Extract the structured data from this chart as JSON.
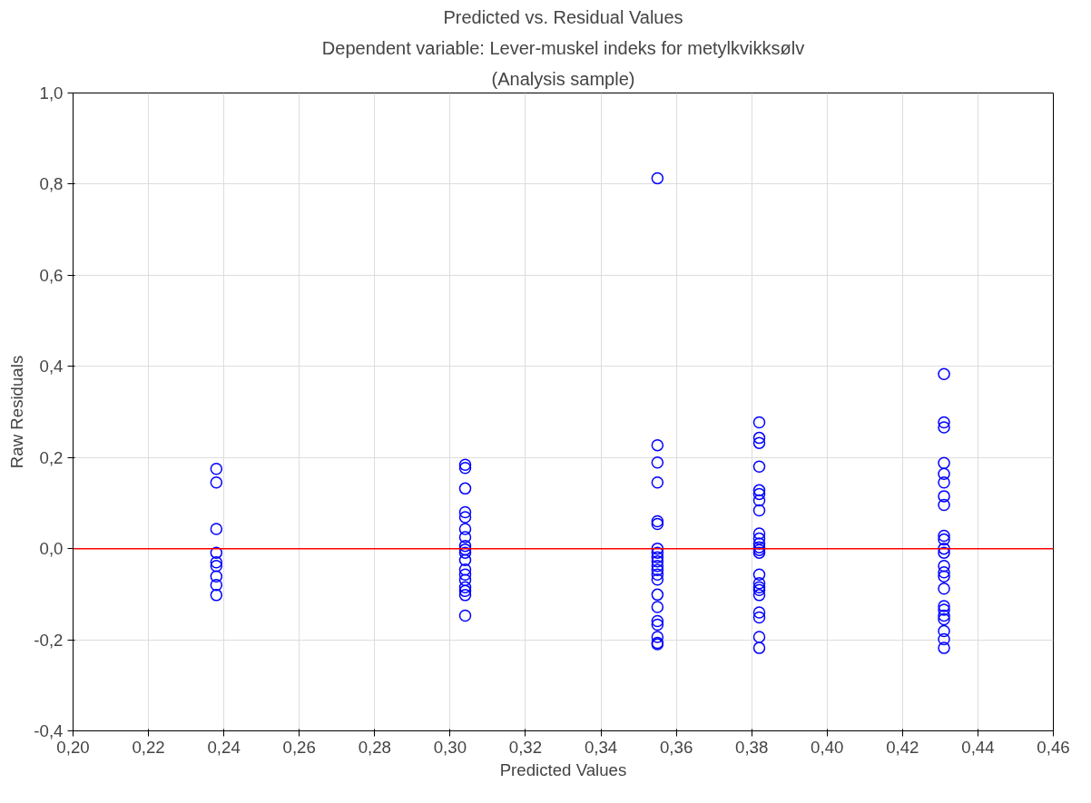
{
  "chart_data": {
    "type": "scatter",
    "title": "Predicted vs. Residual Values",
    "subtitle": "Dependent variable: Lever-muskel indeks for metylkvikksølv",
    "annotations": [
      "(Analysis sample)"
    ],
    "xlabel": "Predicted Values",
    "ylabel": "Raw Residuals",
    "series": [
      {
        "color": "#0000ff",
        "x": [
          0.238,
          0.238,
          0.238,
          0.238,
          0.238,
          0.238,
          0.238,
          0.238,
          0.238,
          0.304,
          0.304,
          0.304,
          0.304,
          0.304,
          0.304,
          0.304,
          0.304,
          0.304,
          0.304,
          0.304,
          0.304,
          0.304,
          0.304,
          0.304,
          0.304,
          0.304,
          0.304,
          0.355,
          0.355,
          0.355,
          0.355,
          0.355,
          0.355,
          0.355,
          0.355,
          0.355,
          0.355,
          0.355,
          0.355,
          0.355,
          0.355,
          0.355,
          0.355,
          0.355,
          0.355,
          0.355,
          0.355,
          0.355,
          0.382,
          0.382,
          0.382,
          0.382,
          0.382,
          0.382,
          0.382,
          0.382,
          0.382,
          0.382,
          0.382,
          0.382,
          0.382,
          0.382,
          0.382,
          0.382,
          0.382,
          0.382,
          0.382,
          0.382,
          0.382,
          0.382,
          0.382,
          0.431,
          0.431,
          0.431,
          0.431,
          0.431,
          0.431,
          0.431,
          0.431,
          0.431,
          0.431,
          0.431,
          0.431,
          0.431,
          0.431,
          0.431,
          0.431,
          0.431,
          0.431,
          0.431,
          0.431,
          0.431,
          0.431,
          0.431
        ],
        "values": [
          0.175,
          0.145,
          0.043,
          -0.009,
          -0.03,
          -0.038,
          -0.061,
          -0.08,
          -0.102,
          0.184,
          0.177,
          0.132,
          0.08,
          0.069,
          0.043,
          0.025,
          0.006,
          -0.002,
          -0.009,
          -0.025,
          -0.046,
          -0.057,
          -0.069,
          -0.085,
          -0.093,
          -0.102,
          -0.147,
          0.813,
          0.227,
          0.189,
          0.145,
          0.06,
          0.054,
          0.0,
          -0.009,
          -0.019,
          -0.028,
          -0.038,
          -0.047,
          -0.057,
          -0.068,
          -0.101,
          -0.128,
          -0.159,
          -0.167,
          -0.194,
          -0.207,
          -0.21,
          0.277,
          0.243,
          0.232,
          0.18,
          0.128,
          0.12,
          0.106,
          0.084,
          0.033,
          0.022,
          0.011,
          0.003,
          -0.003,
          -0.009,
          -0.057,
          -0.076,
          -0.085,
          -0.091,
          -0.102,
          -0.14,
          -0.151,
          -0.194,
          -0.218,
          0.383,
          0.277,
          0.266,
          0.188,
          0.164,
          0.145,
          0.115,
          0.096,
          0.028,
          0.02,
          0.0,
          -0.009,
          -0.038,
          -0.052,
          -0.061,
          -0.088,
          -0.126,
          -0.134,
          -0.147,
          -0.155,
          -0.181,
          -0.199,
          -0.218
        ]
      }
    ],
    "xlim": [
      0.2,
      0.46
    ],
    "xticks": [
      {
        "value": 0.2,
        "label": "0,20"
      },
      {
        "value": 0.22,
        "label": "0,22"
      },
      {
        "value": 0.24,
        "label": "0,24"
      },
      {
        "value": 0.26,
        "label": "0,26"
      },
      {
        "value": 0.28,
        "label": "0,28"
      },
      {
        "value": 0.3,
        "label": "0,30"
      },
      {
        "value": 0.32,
        "label": "0,32"
      },
      {
        "value": 0.34,
        "label": "0,34"
      },
      {
        "value": 0.36,
        "label": "0,36"
      },
      {
        "value": 0.38,
        "label": "0,38"
      },
      {
        "value": 0.4,
        "label": "0,40"
      },
      {
        "value": 0.42,
        "label": "0,42"
      },
      {
        "value": 0.44,
        "label": "0,44"
      },
      {
        "value": 0.46,
        "label": "0,46"
      }
    ],
    "ylim": [
      -0.4,
      1.0
    ],
    "yticks": [
      {
        "value": -0.4,
        "label": "-0,4"
      },
      {
        "value": -0.2,
        "label": "-0,2"
      },
      {
        "value": 0,
        "label": "0,0"
      },
      {
        "value": 0.2,
        "label": "0,2"
      },
      {
        "value": 0.4,
        "label": "0,4"
      },
      {
        "value": 0.6,
        "label": "0,6"
      },
      {
        "value": 0.8,
        "label": "0,8"
      },
      {
        "value": 1.0,
        "label": "1,0"
      }
    ],
    "ref_lines": [
      {
        "axis": "y",
        "value": 0,
        "color": "#ff0000"
      }
    ],
    "grid": true,
    "marker": "circle"
  }
}
